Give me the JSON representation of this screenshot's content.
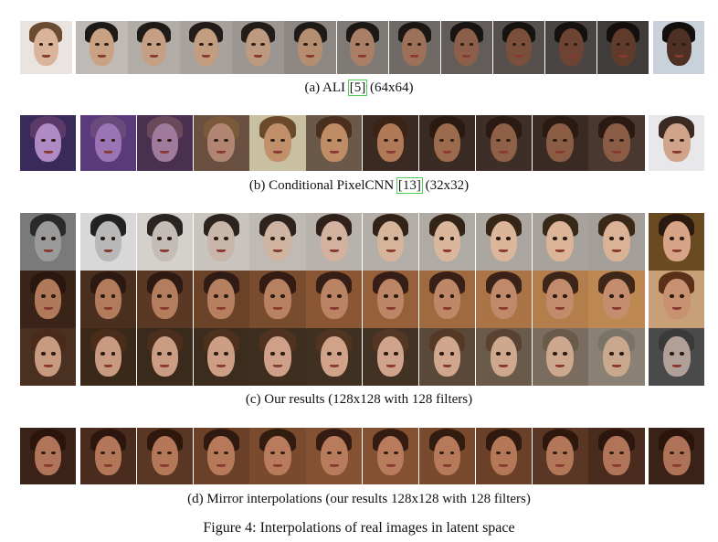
{
  "panels": [
    {
      "id": "a",
      "caption_prefix": "(a) ALI ",
      "caption_cite": "[5]",
      "caption_suffix": " (64x64)",
      "rows": [
        {
          "tones": [
            "#d9b49a",
            "#c9a283",
            "#c49f83",
            "#c29d80",
            "#bd9a7f",
            "#b58e72",
            "#a98065",
            "#9c7059",
            "#8b5f49",
            "#7a4f3b",
            "#6d4433",
            "#603b2c",
            "#4f3024"
          ],
          "hair": [
            "#6b4b32",
            "#1e1a18",
            "#1f1b18",
            "#211c19",
            "#221d19",
            "#1e1a17",
            "#1c1816",
            "#1a1715",
            "#171412",
            "#151210",
            "#14110f",
            "#13100e",
            "#120f0d"
          ],
          "bg": [
            "#e9e4df",
            "#bfbab5",
            "#b2aca6",
            "#a7a29d",
            "#9b9691",
            "#8c8782",
            "#7f7a75",
            "#6f6a66",
            "#625d59",
            "#55504c",
            "#4a4542",
            "#403c39",
            "#c9d2db"
          ]
        }
      ]
    },
    {
      "id": "b",
      "caption_prefix": "(b) Conditional PixelCNN ",
      "caption_cite": "[13]",
      "caption_suffix": " (32x32)",
      "rows": [
        {
          "tones": [
            "#b08ac4",
            "#9a74b4",
            "#a07a9c",
            "#b08672",
            "#c0906a",
            "#c08c66",
            "#b07a58",
            "#9c6a4c",
            "#8f6048",
            "#8a5c44",
            "#8a5c46",
            "#d0a48a"
          ],
          "hair": [
            "#5b3a6a",
            "#6a4a7a",
            "#6a4a5a",
            "#7a5a3a",
            "#6a4a2a",
            "#4a2e1e",
            "#3a2418",
            "#2a1a12",
            "#2a1a12",
            "#2a1a12",
            "#2a1a12",
            "#3a2a22"
          ],
          "bg": [
            "#3a2a5a",
            "#5a3a7a",
            "#4a3050",
            "#6a5040",
            "#c8c0a0",
            "#6a5848",
            "#3a2a22",
            "#3a2a24",
            "#3e2e28",
            "#3a2a24",
            "#4a3830",
            "#e8e8ea"
          ]
        }
      ]
    },
    {
      "id": "c",
      "caption_prefix": "(c) Our results (128x128 with 128 filters)",
      "caption_cite": "",
      "caption_suffix": "",
      "rows": [
        {
          "tones": [
            "#9a9a9a",
            "#b8b8b8",
            "#c4bcb6",
            "#c8b6aa",
            "#d0b4a2",
            "#d2b29e",
            "#d6b49c",
            "#dab69c",
            "#dcb69a",
            "#dcb498",
            "#dab296",
            "#d8a488"
          ],
          "hair": [
            "#2a2a2a",
            "#222222",
            "#2a2422",
            "#2c221e",
            "#2e221c",
            "#30221a",
            "#322218",
            "#342418",
            "#362618",
            "#382818",
            "#3a2818",
            "#2a1a10"
          ],
          "bg": [
            "#7a7a7a",
            "#d8d8d8",
            "#d4d0cc",
            "#cac4be",
            "#c0bab4",
            "#b8b2ac",
            "#b4aea8",
            "#b0aaa4",
            "#aca6a0",
            "#a8a29c",
            "#a49e98",
            "#6a4a20"
          ]
        },
        {
          "tones": [
            "#b07a5a",
            "#b27c5c",
            "#b47e5e",
            "#b68060",
            "#b88262",
            "#ba8464",
            "#bc8666",
            "#be8868",
            "#c08a6a",
            "#c28c6c",
            "#c48e6e",
            "#c89272"
          ],
          "hair": [
            "#2a1810",
            "#2c1a12",
            "#2e1a12",
            "#301c14",
            "#321c14",
            "#341e16",
            "#361e16",
            "#382016",
            "#3a2218",
            "#3c2418",
            "#3e2618",
            "#5a3018"
          ],
          "bg": [
            "#3a2418",
            "#4a2e1e",
            "#5a3824",
            "#6a4228",
            "#7a4c2e",
            "#8a5634",
            "#96603a",
            "#a06a40",
            "#aa7446",
            "#b47e4c",
            "#be8852",
            "#c8a078"
          ]
        },
        {
          "tones": [
            "#c89a80",
            "#c89a82",
            "#ca9c84",
            "#cc9e86",
            "#cea088",
            "#d0a28a",
            "#d0a48c",
            "#d0a68e",
            "#cea88e",
            "#cca88e",
            "#caa88e",
            "#b0a098"
          ],
          "hair": [
            "#4a2a18",
            "#4a2c1a",
            "#4c2e1c",
            "#4e301e",
            "#503220",
            "#523422",
            "#543624",
            "#563826",
            "#5a4232",
            "#6a5a4a",
            "#7a7468",
            "#3a3a3a"
          ],
          "bg": [
            "#4a3020",
            "#3a2818",
            "#3a2a1c",
            "#3c2c1e",
            "#3e2e20",
            "#403022",
            "#423224",
            "#5a4838",
            "#6a5a4a",
            "#7a6c5e",
            "#8a8074",
            "#4a4a4a"
          ]
        }
      ]
    },
    {
      "id": "d",
      "caption_prefix": "(d) Mirror interpolations (our results 128x128 with 128 filters)",
      "caption_cite": "",
      "caption_suffix": "",
      "rows": [
        {
          "tones": [
            "#b07458",
            "#b27658",
            "#b47858",
            "#b67a5a",
            "#b87c5c",
            "#b87c5c",
            "#b87c5c",
            "#b67a5a",
            "#b47858",
            "#b27658",
            "#b07458",
            "#ae7256"
          ],
          "hair": [
            "#2a140c",
            "#2c160e",
            "#2e180e",
            "#301a10",
            "#321c10",
            "#341c12",
            "#341c12",
            "#321c10",
            "#301a10",
            "#2e180e",
            "#2c160e",
            "#2a140c"
          ],
          "bg": [
            "#3a2218",
            "#4a2c1e",
            "#5a3624",
            "#6a4028",
            "#7a4a2e",
            "#845232",
            "#845232",
            "#7a4a2e",
            "#6a4028",
            "#5a3624",
            "#4a2c1e",
            "#3a2218"
          ]
        }
      ]
    }
  ],
  "figure_caption": "Figure 4: Interpolations of real images in latent space"
}
